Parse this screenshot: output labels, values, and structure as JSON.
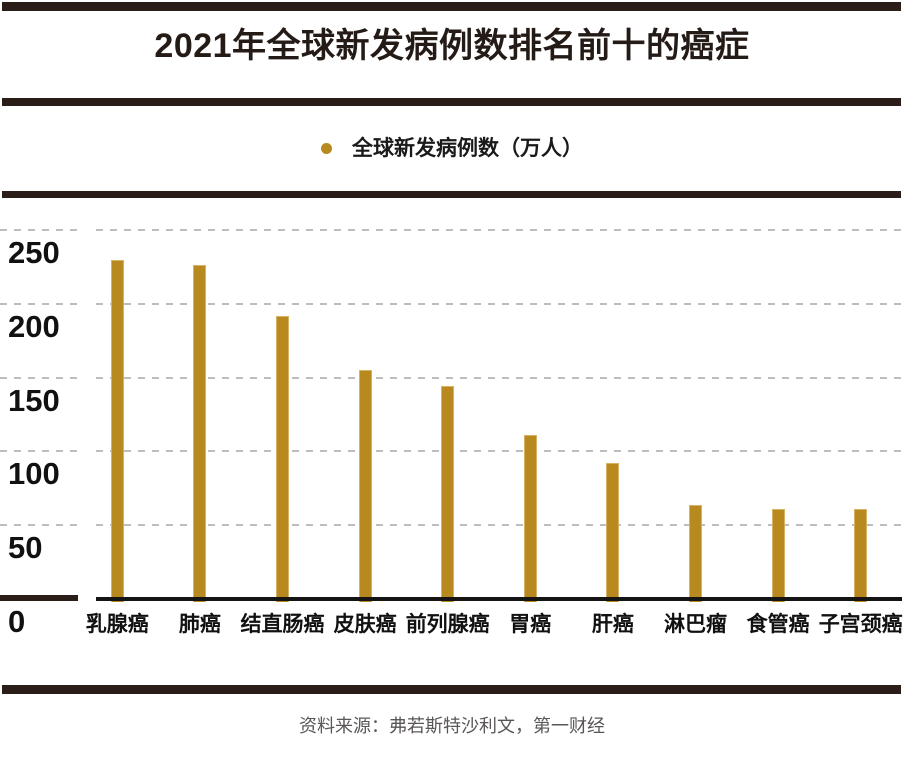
{
  "title": "2021年全球新发病例数排名前十的癌症",
  "legend": {
    "label": "全球新发病例数（万人）"
  },
  "source_note": "资料来源：弗若斯特沙利文，第一财经",
  "colors": {
    "bar_gold": "#B8891E",
    "bar_gold_edge": "#D6B262",
    "rule_dark": "#2B1E19",
    "grid_gray": "#BDBDBD",
    "axis_black": "#141414",
    "text_dark": "#1A1A1A",
    "source_gray": "#5A5656"
  },
  "chart_data": {
    "type": "bar",
    "title": "2021年全球新发病例数排名前十的癌症",
    "series_name": "全球新发病例数（万人）",
    "categories": [
      "乳腺癌",
      "肺癌",
      "结直肠癌",
      "皮肤癌",
      "前列腺癌",
      "胃癌",
      "肝癌",
      "淋巴瘤",
      "食管癌",
      "子宫颈癌"
    ],
    "values": [
      230,
      226,
      192,
      155,
      144,
      111,
      92,
      64,
      61,
      61
    ],
    "unit": "万人",
    "xlabel": "",
    "ylabel": "",
    "ylim": [
      0,
      250
    ],
    "yticks": [
      250,
      200,
      150,
      100,
      50,
      0
    ],
    "grid": "dashed-horizontal",
    "legend_position": "top-center",
    "bar_color": "#B8891E"
  }
}
